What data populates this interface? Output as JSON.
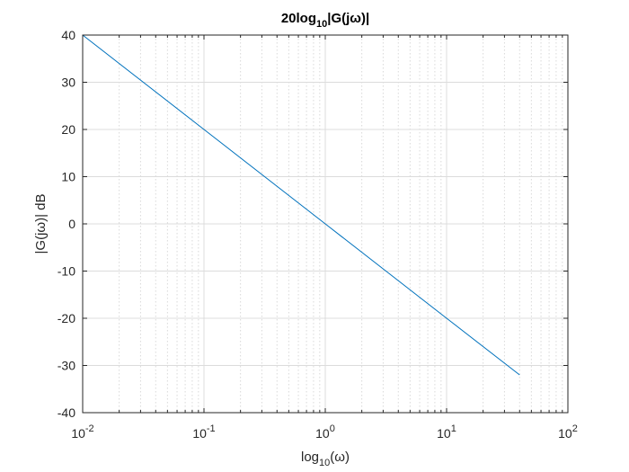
{
  "chart_data": {
    "type": "line",
    "title": {
      "prefix": "20log",
      "subscript": "10",
      "suffix": "|G(jω)|"
    },
    "xlabel": {
      "prefix": "log",
      "subscript": "10",
      "suffix": "(ω)"
    },
    "ylabel": "|G(jω)| dB",
    "x_scale": "log",
    "xlim": [
      0.01,
      100
    ],
    "ylim": [
      -40,
      40
    ],
    "x_ticks": [
      {
        "value": 0.01,
        "base": "10",
        "exp": "-2"
      },
      {
        "value": 0.1,
        "base": "10",
        "exp": "-1"
      },
      {
        "value": 1,
        "base": "10",
        "exp": "0"
      },
      {
        "value": 10,
        "base": "10",
        "exp": "1"
      },
      {
        "value": 100,
        "base": "10",
        "exp": "2"
      }
    ],
    "y_ticks": [
      -40,
      -30,
      -20,
      -10,
      0,
      10,
      20,
      30,
      40
    ],
    "grid": true,
    "minor_grid_x": true,
    "series": [
      {
        "color": "#0072bd",
        "x": [
          0.01,
          0.1,
          1,
          10,
          40
        ],
        "y": [
          40,
          20,
          0,
          -20,
          -32
        ]
      }
    ]
  }
}
